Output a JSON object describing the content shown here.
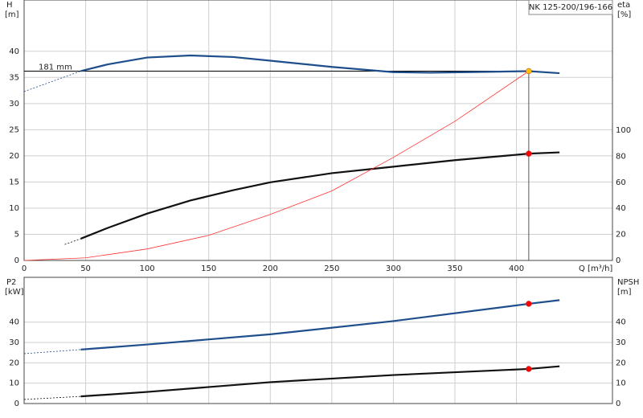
{
  "chart_data": [
    {
      "type": "line",
      "title": "NK 125-200/196-166",
      "y_label": "H",
      "y_unit": "[m]",
      "y2_label": "eta",
      "y2_unit": "[%]",
      "x_label": "Q [m³/h]",
      "xlim": [
        0,
        478
      ],
      "xticks": [
        0,
        50,
        100,
        150,
        200,
        250,
        300,
        350,
        400
      ],
      "ylim": [
        0,
        49.8
      ],
      "yticks": [
        0,
        5,
        10,
        15,
        20,
        25,
        30,
        35,
        40
      ],
      "y2lim": [
        0,
        200
      ],
      "y2ticks": [
        0,
        20,
        40,
        60,
        80,
        100
      ],
      "grid": true,
      "series": [
        {
          "color": "#1f4e8c",
          "x": [
            46,
            68,
            100,
            135,
            170,
            200,
            250,
            300,
            330,
            360,
            410,
            435
          ],
          "values": [
            36.2,
            37.5,
            38.8,
            39.2,
            38.9,
            38.2,
            37,
            36,
            35.9,
            36,
            36.2,
            35.8
          ]
        },
        {
          "color": "#1f4e8c",
          "dash": true,
          "x": [
            0,
            46
          ],
          "values": [
            32.3,
            36.2
          ]
        },
        {
          "color": "#111111",
          "axis": "y2",
          "x": [
            46,
            68,
            100,
            135,
            170,
            200,
            250,
            300,
            350,
            410,
            435
          ],
          "values": [
            16.7,
            25,
            36,
            46,
            54,
            60,
            67,
            72,
            77,
            82,
            83
          ]
        },
        {
          "color": "#111111",
          "axis": "y2",
          "dash": true,
          "x": [
            33,
            46
          ],
          "values": [
            12.3,
            16.7
          ]
        },
        {
          "color": "#ff3333",
          "thin": true,
          "x": [
            0,
            50,
            100,
            150,
            200,
            250,
            300,
            350,
            410
          ],
          "values": [
            0,
            0.5,
            2.2,
            4.8,
            8.8,
            13.3,
            19.7,
            26.6,
            36.2
          ]
        }
      ],
      "reference": {
        "label": "181 mm",
        "x": [
          0,
          410
        ],
        "y": 36.2
      },
      "markers": [
        {
          "x": 410,
          "y": 36.2,
          "color": "#ffc000"
        },
        {
          "x": 410,
          "y": 82,
          "color": "#ff0000",
          "axis": "y2"
        }
      ]
    },
    {
      "type": "line",
      "y_label": "P2",
      "y_unit": "[kW]",
      "y2_label": "NPSH",
      "y2_unit": "[m]",
      "xlim": [
        0,
        478
      ],
      "xticks": [
        0,
        50,
        100,
        150,
        200,
        250,
        300,
        350,
        400
      ],
      "ylim": [
        0,
        62
      ],
      "yticks": [
        0,
        10,
        20,
        30,
        40
      ],
      "y2lim": [
        0,
        62
      ],
      "y2ticks": [
        0,
        10,
        20,
        30,
        40
      ],
      "grid": true,
      "series": [
        {
          "color": "#1f4e8c",
          "x": [
            46,
            100,
            200,
            300,
            410,
            435
          ],
          "values": [
            26.5,
            29,
            34,
            40.5,
            49,
            50.8
          ]
        },
        {
          "color": "#1f4e8c",
          "dash": true,
          "x": [
            0,
            46
          ],
          "values": [
            24.5,
            26.5
          ]
        },
        {
          "color": "#111111",
          "axis": "y2",
          "x": [
            46,
            100,
            200,
            300,
            410,
            435
          ],
          "values": [
            3.5,
            5.7,
            10.5,
            14,
            17,
            18.3
          ]
        },
        {
          "color": "#111111",
          "axis": "y2",
          "dash": true,
          "x": [
            0,
            46
          ],
          "values": [
            2,
            3.5
          ]
        }
      ],
      "markers": [
        {
          "x": 410,
          "y": 49,
          "color": "#ff0000"
        },
        {
          "x": 410,
          "y": 17,
          "color": "#ff0000",
          "axis": "y2"
        }
      ]
    }
  ]
}
